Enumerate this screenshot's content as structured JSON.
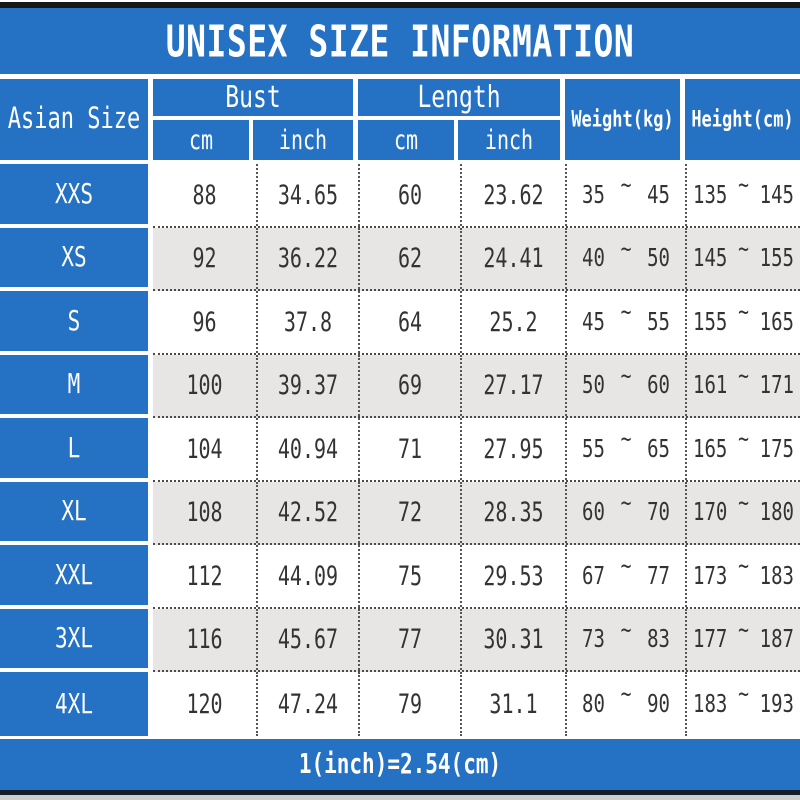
{
  "title": "UNISEX SIZE INFORMATION",
  "colors": {
    "blue": "#2572c5",
    "row_alt": "#e8e6e4",
    "ink": "#333333",
    "top_bar": "#171717",
    "bottom_bar": "#141e29",
    "bottom_strip": "#cdcdcd"
  },
  "chart_data": {
    "type": "table",
    "title": "UNISEX SIZE INFORMATION",
    "corner_header": "Asian Size",
    "column_groups": [
      {
        "label": "Bust",
        "sub_columns": [
          "cm",
          "inch"
        ]
      },
      {
        "label": "Length",
        "sub_columns": [
          "cm",
          "inch"
        ]
      }
    ],
    "range_columns": [
      "Weight(kg)",
      "Height(cm)"
    ],
    "range_separator": "~",
    "rows": [
      {
        "size": "XXS",
        "bust_cm": "88",
        "bust_inch": "34.65",
        "length_cm": "60",
        "length_inch": "23.62",
        "weight_min": "35",
        "weight_max": "45",
        "height_min": "135",
        "height_max": "145"
      },
      {
        "size": "XS",
        "bust_cm": "92",
        "bust_inch": "36.22",
        "length_cm": "62",
        "length_inch": "24.41",
        "weight_min": "40",
        "weight_max": "50",
        "height_min": "145",
        "height_max": "155"
      },
      {
        "size": "S",
        "bust_cm": "96",
        "bust_inch": "37.8",
        "length_cm": "64",
        "length_inch": "25.2",
        "weight_min": "45",
        "weight_max": "55",
        "height_min": "155",
        "height_max": "165"
      },
      {
        "size": "M",
        "bust_cm": "100",
        "bust_inch": "39.37",
        "length_cm": "69",
        "length_inch": "27.17",
        "weight_min": "50",
        "weight_max": "60",
        "height_min": "161",
        "height_max": "171"
      },
      {
        "size": "L",
        "bust_cm": "104",
        "bust_inch": "40.94",
        "length_cm": "71",
        "length_inch": "27.95",
        "weight_min": "55",
        "weight_max": "65",
        "height_min": "165",
        "height_max": "175"
      },
      {
        "size": "XL",
        "bust_cm": "108",
        "bust_inch": "42.52",
        "length_cm": "72",
        "length_inch": "28.35",
        "weight_min": "60",
        "weight_max": "70",
        "height_min": "170",
        "height_max": "180"
      },
      {
        "size": "XXL",
        "bust_cm": "112",
        "bust_inch": "44.09",
        "length_cm": "75",
        "length_inch": "29.53",
        "weight_min": "67",
        "weight_max": "77",
        "height_min": "173",
        "height_max": "183"
      },
      {
        "size": "3XL",
        "bust_cm": "116",
        "bust_inch": "45.67",
        "length_cm": "77",
        "length_inch": "30.31",
        "weight_min": "73",
        "weight_max": "83",
        "height_min": "177",
        "height_max": "187"
      },
      {
        "size": "4XL",
        "bust_cm": "120",
        "bust_inch": "47.24",
        "length_cm": "79",
        "length_inch": "31.1",
        "weight_min": "80",
        "weight_max": "90",
        "height_min": "183",
        "height_max": "193"
      }
    ],
    "footer": "1(inch)=2.54(cm)"
  }
}
